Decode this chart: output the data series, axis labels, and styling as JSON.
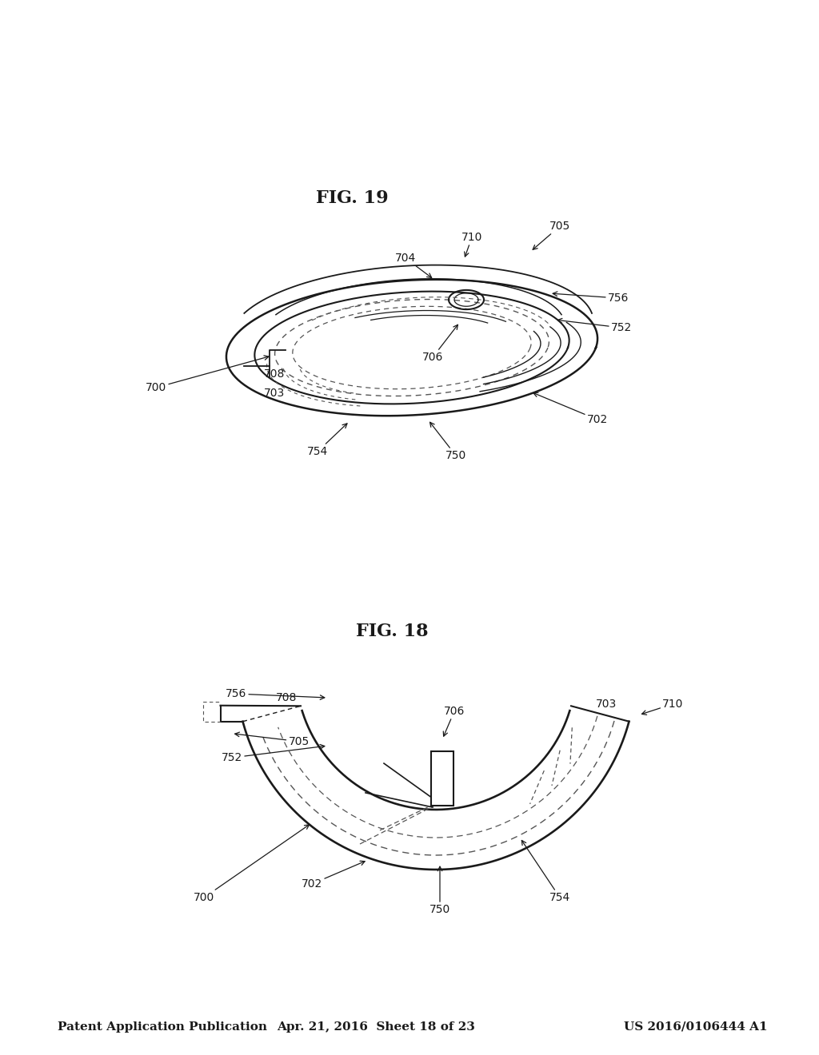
{
  "background_color": "#ffffff",
  "header_left": "Patent Application Publication",
  "header_center": "Apr. 21, 2016  Sheet 18 of 23",
  "header_right": "US 2016/0106444 A1",
  "line_color": "#1a1a1a",
  "dashed_color": "#555555",
  "label_fontsize": 10,
  "caption_fontsize": 15
}
